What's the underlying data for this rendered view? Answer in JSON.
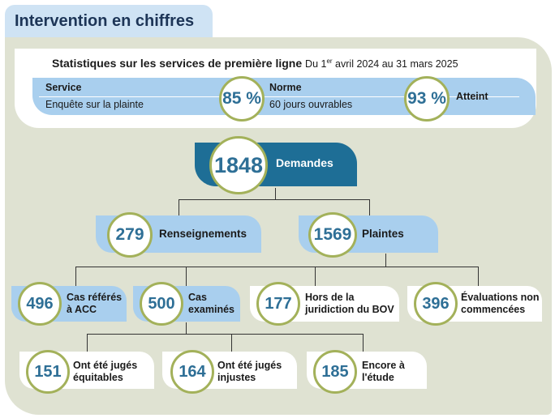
{
  "title": "Intervention en chiffres",
  "stats": {
    "heading": "Statistiques sur les services de première ligne",
    "period_prefix": "Du 1",
    "period_sup": "er",
    "period_suffix": " avril 2024 au 31 mars 2025",
    "service_label": "Service",
    "service_value": "Enquête sur la plainte",
    "norm_label": "Norme",
    "norm_value": "60 jours ouvrables",
    "norm_percent": "85 %",
    "achieved_percent": "93 %",
    "achieved_label": "Atteint"
  },
  "tree": {
    "root": {
      "value": "1848",
      "label": "Demandes"
    },
    "level1": [
      {
        "value": "279",
        "label": "Renseignements"
      },
      {
        "value": "1569",
        "label": "Plaintes"
      }
    ],
    "level2": [
      {
        "value": "496",
        "label_line1": "Cas référés",
        "label_line2": "à ACC"
      },
      {
        "value": "500",
        "label_line1": "Cas",
        "label_line2": "examinés"
      },
      {
        "value": "177",
        "label_line1": "Hors de la",
        "label_line2": "juridiction du BOV"
      },
      {
        "value": "396",
        "label_line1": "Évaluations non",
        "label_line2": "commencées"
      }
    ],
    "level3": [
      {
        "value": "151",
        "label_line1": "Ont été jugés",
        "label_line2": "équitables"
      },
      {
        "value": "164",
        "label_line1": "Ont été jugés",
        "label_line2": "injustes"
      },
      {
        "value": "185",
        "label_line1": "Encore à",
        "label_line2": "l'étude"
      }
    ]
  },
  "colors": {
    "accent_blue": "#a9cfee",
    "dark_blue": "#1e6e96",
    "circle_border": "#a3b15a",
    "number_text": "#2e6f96",
    "panel": "#dfe2d2"
  }
}
